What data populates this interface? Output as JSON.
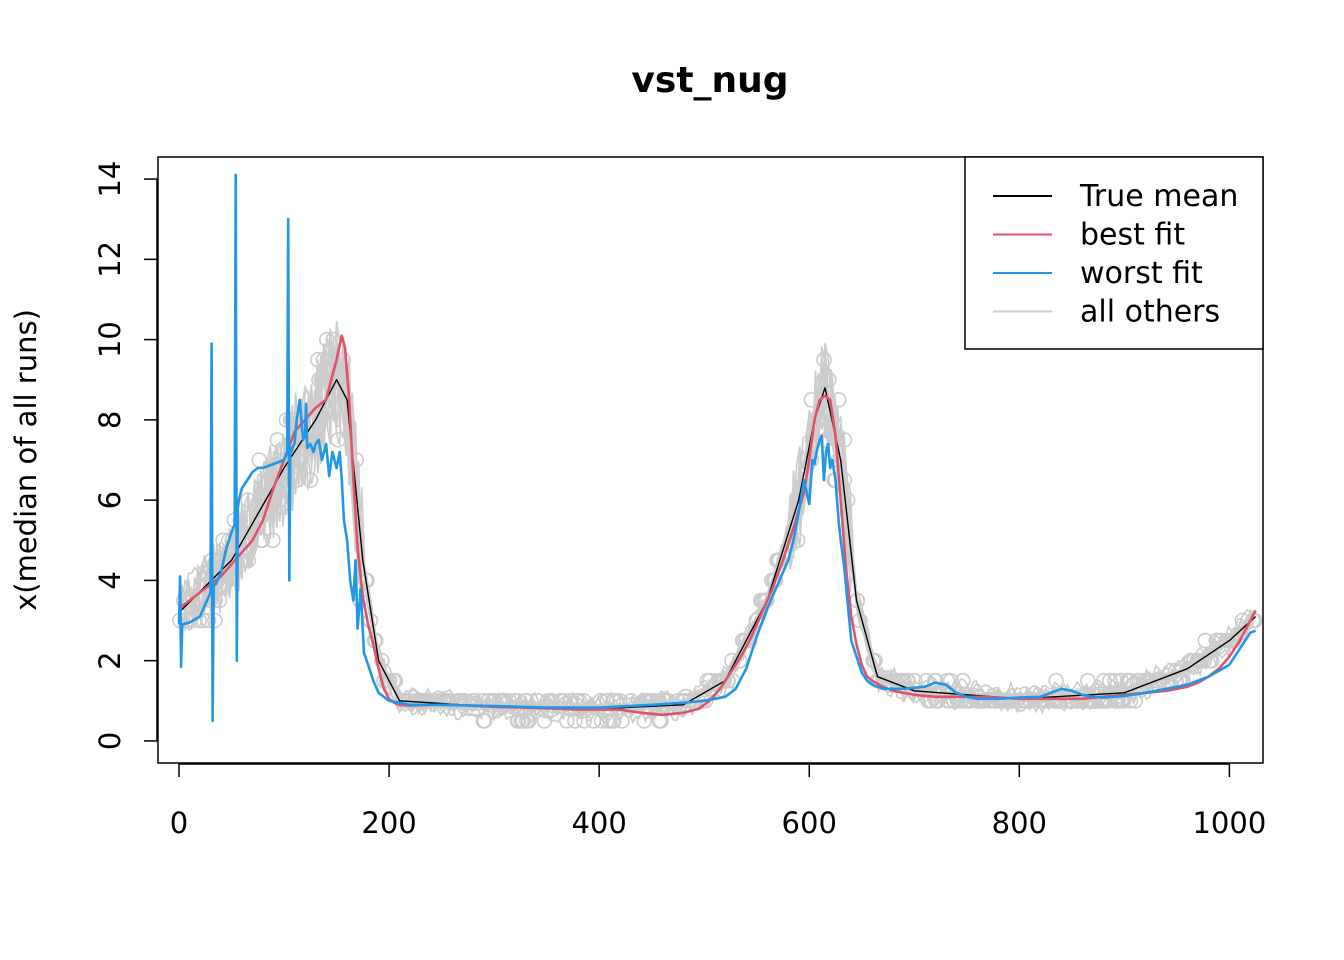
{
  "chart_data": {
    "type": "line",
    "title": "vst_nug",
    "xlabel": "",
    "ylabel": "x(median of all runs)",
    "xlim": [
      -20,
      1032
    ],
    "ylim": [
      -0.55,
      14.55
    ],
    "x_ticks": [
      0,
      200,
      400,
      600,
      800,
      1000
    ],
    "y_ticks": [
      0,
      2,
      4,
      6,
      8,
      10,
      12,
      14
    ],
    "legend": {
      "position": "top-right",
      "entries": [
        {
          "label": "True mean",
          "color": "#000000"
        },
        {
          "label": "best fit",
          "color": "#DF536B"
        },
        {
          "label": "worst fit",
          "color": "#2297E6"
        },
        {
          "label": "all others",
          "color": "#CCCCCC"
        }
      ]
    },
    "series": [
      {
        "name": "True mean",
        "color": "#000000",
        "x": [
          0,
          50,
          100,
          130,
          150,
          160,
          175,
          190,
          210,
          300,
          400,
          480,
          520,
          560,
          590,
          605,
          615,
          630,
          645,
          665,
          700,
          800,
          900,
          960,
          1000,
          1025
        ],
        "y": [
          3.2,
          4.5,
          6.8,
          8.0,
          9.0,
          8.5,
          4.5,
          2.0,
          1.0,
          0.85,
          0.8,
          0.9,
          1.5,
          3.5,
          6.0,
          8.0,
          8.8,
          7.0,
          3.5,
          1.6,
          1.25,
          1.05,
          1.2,
          1.8,
          2.5,
          3.1
        ]
      },
      {
        "name": "best fit",
        "color": "#DF536B",
        "x": [
          0,
          10,
          20,
          30,
          40,
          50,
          60,
          70,
          80,
          90,
          100,
          110,
          120,
          130,
          135,
          140,
          145,
          150,
          155,
          158,
          162,
          166,
          170,
          175,
          180,
          185,
          190,
          195,
          200,
          205,
          210,
          220,
          240,
          260,
          300,
          340,
          380,
          400,
          420,
          440,
          460,
          480,
          495,
          505,
          515,
          525,
          535,
          545,
          555,
          565,
          575,
          585,
          595,
          600,
          605,
          610,
          615,
          620,
          625,
          630,
          635,
          640,
          645,
          650,
          655,
          660,
          670,
          680,
          700,
          720,
          740,
          760,
          780,
          800,
          820,
          840,
          860,
          880,
          900,
          920,
          940,
          950,
          960,
          970,
          980,
          990,
          1000,
          1010,
          1020,
          1025
        ],
        "y": [
          3.3,
          3.5,
          3.7,
          3.9,
          4.1,
          4.4,
          4.7,
          5.0,
          5.5,
          6.3,
          7.0,
          7.7,
          8.0,
          8.3,
          8.4,
          8.5,
          9.0,
          9.5,
          10.1,
          9.8,
          8.5,
          6.5,
          4.8,
          3.6,
          2.9,
          2.4,
          1.8,
          1.3,
          1.05,
          0.95,
          0.9,
          0.88,
          0.9,
          0.9,
          0.85,
          0.82,
          0.78,
          0.78,
          0.78,
          0.7,
          0.65,
          0.7,
          0.8,
          1.0,
          1.3,
          1.7,
          2.1,
          2.6,
          3.2,
          3.8,
          4.5,
          5.3,
          6.2,
          7.0,
          8.0,
          8.5,
          8.6,
          8.5,
          7.6,
          6.0,
          4.3,
          3.1,
          2.4,
          1.9,
          1.6,
          1.5,
          1.35,
          1.25,
          1.15,
          1.1,
          1.1,
          1.1,
          1.08,
          1.05,
          1.05,
          1.05,
          1.05,
          1.1,
          1.15,
          1.2,
          1.25,
          1.3,
          1.35,
          1.45,
          1.6,
          1.8,
          2.1,
          2.5,
          3.0,
          3.25
        ]
      },
      {
        "name": "worst fit",
        "color": "#2297E6",
        "x": [
          0,
          1,
          2,
          3,
          10,
          20,
          30,
          31,
          32,
          33,
          34,
          35,
          40,
          45,
          50,
          53,
          54,
          55,
          56,
          57,
          58,
          60,
          65,
          70,
          75,
          80,
          90,
          100,
          103,
          104,
          105,
          106,
          107,
          108,
          110,
          112,
          115,
          118,
          120,
          121,
          122,
          125,
          128,
          130,
          133,
          136,
          140,
          143,
          146,
          150,
          153,
          155,
          157,
          160,
          163,
          166,
          168,
          170,
          173,
          176,
          180,
          185,
          190,
          200,
          210,
          220,
          250,
          300,
          350,
          400,
          450,
          480,
          500,
          510,
          520,
          530,
          540,
          550,
          560,
          570,
          580,
          585,
          590,
          595,
          600,
          603,
          605,
          607,
          610,
          612,
          614,
          616,
          618,
          620,
          622,
          625,
          628,
          630,
          633,
          636,
          640,
          645,
          650,
          655,
          660,
          670,
          690,
          710,
          720,
          730,
          740,
          750,
          760,
          780,
          800,
          820,
          830,
          840,
          850,
          860,
          870,
          880,
          900,
          920,
          940,
          960,
          980,
          1000,
          1010,
          1020,
          1025
        ],
        "y": [
          2.9,
          4.1,
          1.85,
          2.9,
          2.95,
          3.1,
          3.7,
          9.9,
          0.5,
          3.9,
          3.9,
          3.9,
          4.2,
          4.8,
          5.2,
          5.4,
          14.1,
          2.0,
          5.8,
          6.0,
          6.1,
          6.3,
          6.5,
          6.7,
          6.8,
          6.8,
          6.9,
          7.0,
          7.2,
          13.0,
          4.0,
          7.3,
          7.2,
          7.3,
          7.4,
          8.0,
          8.5,
          7.5,
          7.6,
          8.4,
          7.3,
          7.4,
          7.2,
          7.4,
          7.5,
          7.0,
          7.4,
          6.6,
          7.2,
          6.8,
          7.2,
          6.5,
          5.5,
          5.0,
          4.0,
          3.5,
          4.5,
          2.8,
          3.8,
          2.2,
          1.9,
          1.5,
          1.2,
          1.0,
          0.95,
          0.9,
          0.9,
          0.87,
          0.83,
          0.83,
          0.9,
          0.95,
          1.0,
          1.05,
          1.1,
          1.3,
          1.8,
          2.6,
          3.3,
          3.9,
          4.5,
          5.0,
          5.7,
          6.5,
          5.9,
          7.0,
          6.9,
          7.2,
          7.5,
          7.6,
          6.5,
          7.2,
          7.4,
          6.8,
          7.0,
          6.5,
          5.5,
          5.0,
          4.4,
          3.6,
          2.5,
          2.1,
          1.7,
          1.5,
          1.4,
          1.3,
          1.3,
          1.35,
          1.45,
          1.4,
          1.2,
          1.1,
          1.05,
          1.05,
          1.08,
          1.1,
          1.2,
          1.3,
          1.25,
          1.15,
          1.1,
          1.08,
          1.12,
          1.2,
          1.3,
          1.4,
          1.6,
          1.9,
          2.3,
          2.7,
          2.75
        ]
      }
    ],
    "points_color": "#CCCCCC"
  }
}
